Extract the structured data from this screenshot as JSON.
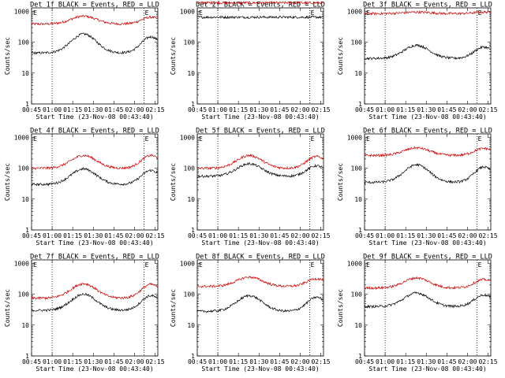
{
  "xticks": [
    "00:45",
    "01:00",
    "01:15",
    "01:30",
    "01:45",
    "02:00",
    "02:15"
  ],
  "xlabel": "Start Time (23-Nov-08 00:43:40)",
  "ylabel": "Counts/sec",
  "yticks": [
    "1",
    "10",
    "100",
    "1000"
  ],
  "flag_labels": [
    "E",
    "E"
  ],
  "colors": {
    "events": "#000000",
    "lld": "#cc0000"
  },
  "chart_data": [
    {
      "type": "line",
      "title": "Det 1f BLACK = Events, RED = LLD",
      "xlim": [
        0,
        92
      ],
      "ylim": [
        1,
        1300
      ],
      "yscale": "log",
      "markers_min": [
        15,
        82
      ],
      "base_black": [
        45,
        185,
        150
      ],
      "base_red": [
        390,
        700,
        650
      ]
    },
    {
      "type": "line",
      "title": "Det 2f BLACK = Events, RED = LLD",
      "xlim": [
        0,
        92
      ],
      "ylim": [
        1,
        1300
      ],
      "yscale": "log",
      "markers_min": [
        15,
        82
      ],
      "base_black": [
        650,
        650,
        650
      ],
      "base_red": [
        1900,
        1900,
        1900
      ]
    },
    {
      "type": "line",
      "title": "Det 3f BLACK = Events, RED = LLD",
      "xlim": [
        0,
        92
      ],
      "ylim": [
        1,
        1300
      ],
      "yscale": "log",
      "markers_min": [
        15,
        82
      ],
      "base_black": [
        30,
        80,
        70
      ],
      "base_red": [
        850,
        950,
        950
      ]
    },
    {
      "type": "line",
      "title": "Det 4f BLACK = Events, RED = LLD",
      "xlim": [
        0,
        92
      ],
      "ylim": [
        1,
        1300
      ],
      "yscale": "log",
      "markers_min": [
        15,
        82
      ],
      "base_black": [
        30,
        95,
        85
      ],
      "base_red": [
        100,
        260,
        260
      ]
    },
    {
      "type": "line",
      "title": "Det 5f BLACK = Events, RED = LLD",
      "xlim": [
        0,
        92
      ],
      "ylim": [
        1,
        1300
      ],
      "yscale": "log",
      "markers_min": [
        15,
        82
      ],
      "base_black": [
        55,
        140,
        120
      ],
      "base_red": [
        100,
        260,
        240
      ]
    },
    {
      "type": "line",
      "title": "Det 6f BLACK = Events, RED = LLD",
      "xlim": [
        0,
        92
      ],
      "ylim": [
        1,
        1300
      ],
      "yscale": "log",
      "markers_min": [
        15,
        82
      ],
      "base_black": [
        35,
        130,
        110
      ],
      "base_red": [
        260,
        460,
        440
      ]
    },
    {
      "type": "line",
      "title": "Det 7f BLACK = Events, RED = LLD",
      "xlim": [
        0,
        92
      ],
      "ylim": [
        1,
        1300
      ],
      "yscale": "log",
      "markers_min": [
        15,
        82
      ],
      "base_black": [
        30,
        100,
        90
      ],
      "base_red": [
        75,
        220,
        210
      ]
    },
    {
      "type": "line",
      "title": "Det 8f BLACK = Events, RED = LLD",
      "xlim": [
        0,
        92
      ],
      "ylim": [
        1,
        1300
      ],
      "yscale": "log",
      "markers_min": [
        15,
        82
      ],
      "base_black": [
        28,
        90,
        80
      ],
      "base_red": [
        180,
        360,
        320
      ]
    },
    {
      "type": "line",
      "title": "Det 9f BLACK = Events, RED = LLD",
      "xlim": [
        0,
        92
      ],
      "ylim": [
        1,
        1300
      ],
      "yscale": "log",
      "markers_min": [
        15,
        82
      ],
      "base_black": [
        40,
        110,
        95
      ],
      "base_red": [
        160,
        340,
        300
      ]
    }
  ]
}
